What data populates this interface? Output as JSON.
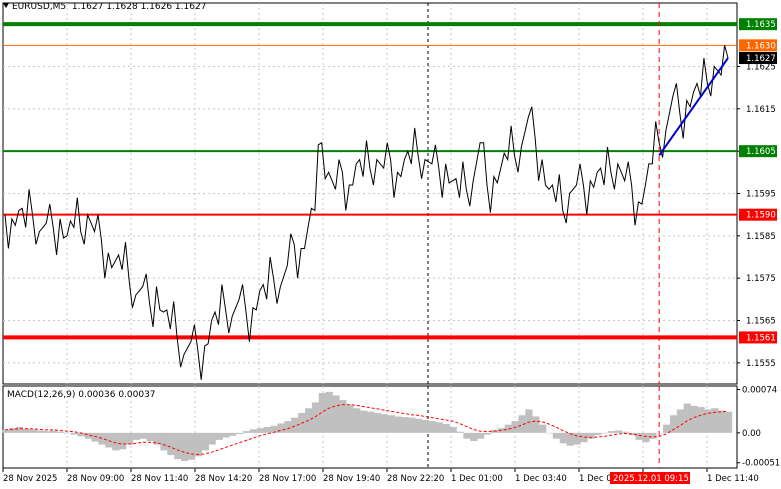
{
  "title": {
    "symbol": "EURUSD,M5",
    "ohlc": "1.1627 1.1628 1.1626 1.1627"
  },
  "macd": {
    "label": "MACD(12,26,9)",
    "values": "0.00036 0.00037"
  },
  "colors": {
    "support_resistance": "#008000",
    "red_level": "#ff0000",
    "thin_level": "#ff6600",
    "price": "#000000",
    "trend": "#0000cc",
    "histogram": "#c0c0c0",
    "signal": "#ff0000",
    "current_price_bg": "#000000",
    "time_marker_bg": "#ff0000"
  },
  "chart_data": [
    {
      "type": "line",
      "title": "EURUSD,M5",
      "ylim": [
        1.155,
        1.164
      ],
      "grid": true,
      "y_ticks": [
        "1.1625",
        "1.1615",
        "1.1605",
        "1.1595",
        "1.1585",
        "1.1575",
        "1.1565",
        "1.1555"
      ],
      "x_ticks": [
        "28 Nov 2025",
        "28 Nov 09:00",
        "28 Nov 11:40",
        "28 Nov 14:20",
        "28 Nov 17:00",
        "28 Nov 19:40",
        "28 Nov 22:20",
        "1 Dec 01:00",
        "1 Dec 03:40",
        "1 Dec 0",
        "2025.12.01 09:15",
        "1 Dec 11:40"
      ],
      "horizontal_levels": [
        {
          "value": 1.1635,
          "label": "1.1635",
          "style": "green-thick"
        },
        {
          "value": 1.163,
          "label": "1.1630",
          "style": "orange-thin"
        },
        {
          "value": 1.1605,
          "label": "1.1605",
          "style": "green"
        },
        {
          "value": 1.159,
          "label": "1.1590",
          "style": "red"
        },
        {
          "value": 1.1561,
          "label": "1.1561",
          "style": "red-thick"
        }
      ],
      "current_price": {
        "value": 1.1627,
        "label": "1.1627"
      },
      "price_series": [
        1.159,
        1.1589,
        1.1591,
        1.1587,
        1.159,
        1.1586,
        1.1588,
        1.1587,
        1.1589,
        1.1585,
        1.1587,
        1.1586,
        1.159,
        1.1586,
        1.1584,
        1.1581,
        1.1579,
        1.1577,
        1.1575,
        1.1571,
        1.1573,
        1.1569,
        1.1573,
        1.1567,
        1.1563,
        1.1561,
        1.1557,
        1.156,
        1.1558,
        1.1559,
        1.1565,
        1.1564,
        1.1568,
        1.1566,
        1.157,
        1.1567,
        1.1568,
        1.1572,
        1.157,
        1.1575,
        1.1573,
        1.1578,
        1.1583,
        1.1582,
        1.1587,
        1.1591,
        1.1607,
        1.16,
        1.1596,
        1.16,
        1.1597,
        1.1602,
        1.1599,
        1.1601,
        1.1603,
        1.1601,
        1.1603,
        1.16,
        1.1603,
        1.1602,
        1.1604,
        1.1603,
        1.1602,
        1.1601,
        1.1602,
        1.1598,
        1.1594,
        1.1596,
        1.1598,
        1.1607,
        1.1597,
        1.1599,
        1.1601,
        1.1603,
        1.1604,
        1.1606,
        1.1613,
        1.1608,
        1.1603,
        1.1596,
        1.1593,
        1.1591,
        1.1595,
        1.1597,
        1.1597,
        1.1598,
        1.16,
        1.1597,
        1.16,
        1.1602,
        1.1598,
        1.1597,
        1.1593,
        1.1597,
        1.1602,
        1.1607,
        1.161,
        1.1618,
        1.1614,
        1.1617,
        1.1619,
        1.1618,
        1.1621,
        1.1625,
        1.1623,
        1.1627
      ],
      "trendline": {
        "start": 1.1604,
        "end": 1.1627
      },
      "time_marker_index": 95
    },
    {
      "type": "bar",
      "title": "MACD(12,26,9)",
      "ylim": [
        -0.0006,
        0.0008
      ],
      "y_ticks": [
        "0.00074",
        "0.00",
        "-0.00051"
      ],
      "histogram": [
        5e-05,
        8e-05,
        0.0001,
        7e-05,
        6e-05,
        4e-05,
        3e-05,
        4e-05,
        2e-05,
        0.0,
        -3e-05,
        -6e-05,
        -0.0001,
        -0.00015,
        -0.0002,
        -0.00025,
        -0.0003,
        -0.00028,
        -0.0002,
        -0.00012,
        -0.0001,
        -0.00014,
        -0.0002,
        -0.0003,
        -0.00038,
        -0.00045,
        -0.00048,
        -0.00046,
        -0.0004,
        -0.0003,
        -0.0002,
        -0.00012,
        -8e-05,
        -5e-05,
        -2e-05,
        3e-05,
        6e-05,
        8e-05,
        0.0001,
        0.00012,
        0.00016,
        0.0002,
        0.00026,
        0.00034,
        0.00042,
        0.00052,
        0.00068,
        0.0007,
        0.00064,
        0.00056,
        0.00048,
        0.00042,
        0.00038,
        0.00036,
        0.00034,
        0.00032,
        0.0003,
        0.00028,
        0.00027,
        0.00026,
        0.00024,
        0.00022,
        0.0002,
        0.00018,
        0.00015,
        0.0001,
        2e-05,
        -0.0001,
        -0.00014,
        -0.0001,
        -3e-05,
        5e-05,
        8e-05,
        0.00014,
        0.0002,
        0.0003,
        0.0004,
        0.00028,
        0.00014,
        0.0,
        -0.0001,
        -0.00018,
        -0.00022,
        -0.0002,
        -0.00016,
        -0.0001,
        -4e-05,
        0.0,
        3e-05,
        4e-05,
        2e-05,
        -4e-05,
        -0.00012,
        -0.00016,
        -0.0001,
        0.0,
        0.00014,
        0.0003,
        0.0004,
        0.0005,
        0.00046,
        0.00044,
        0.0004,
        0.00042,
        0.00038,
        0.00036
      ],
      "signal": [
        5e-05,
        6e-05,
        7e-05,
        7e-05,
        7e-05,
        6e-05,
        5e-05,
        5e-05,
        4e-05,
        3e-05,
        2e-05,
        0.0,
        -3e-05,
        -6e-05,
        -9e-05,
        -0.00013,
        -0.00017,
        -0.00019,
        -0.00019,
        -0.00018,
        -0.00016,
        -0.00016,
        -0.00017,
        -0.0002,
        -0.00024,
        -0.00029,
        -0.00033,
        -0.00036,
        -0.00037,
        -0.00036,
        -0.00033,
        -0.00029,
        -0.00025,
        -0.00021,
        -0.00017,
        -0.00013,
        -9e-05,
        -5e-05,
        -2e-05,
        1e-05,
        4e-05,
        7e-05,
        0.00011,
        0.00016,
        0.00021,
        0.00027,
        0.00035,
        0.00042,
        0.00046,
        0.00048,
        0.00048,
        0.00047,
        0.00045,
        0.00043,
        0.00041,
        0.00039,
        0.00037,
        0.00035,
        0.00033,
        0.00031,
        0.0003,
        0.00028,
        0.00026,
        0.00024,
        0.00022,
        0.0002,
        0.00016,
        0.00011,
        6e-05,
        3e-05,
        2e-05,
        3e-05,
        4e-05,
        6e-05,
        9e-05,
        0.00013,
        0.00018,
        0.0002,
        0.00019,
        0.00015,
        0.0001,
        4e-05,
        -1e-05,
        -5e-05,
        -7e-05,
        -8e-05,
        -7e-05,
        -6e-05,
        -4e-05,
        -2e-05,
        -1e-05,
        -2e-05,
        -4e-05,
        -6e-05,
        -7e-05,
        -6e-05,
        -2e-05,
        5e-05,
        0.00012,
        0.0002,
        0.00026,
        0.0003,
        0.00033,
        0.00035,
        0.00036,
        0.00037
      ]
    }
  ]
}
